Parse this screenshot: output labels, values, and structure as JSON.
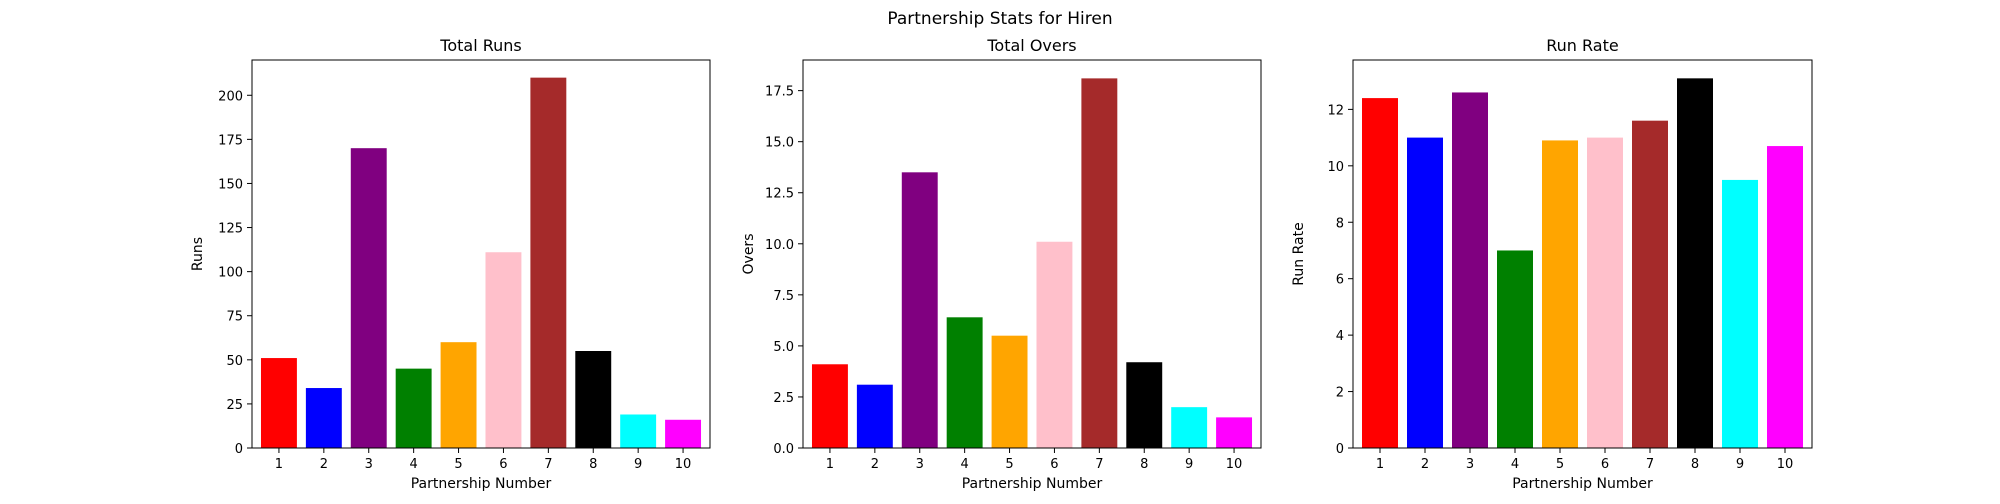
{
  "figure": {
    "suptitle": "Partnership Stats for Hiren"
  },
  "colors": [
    "#ff0000",
    "#0000ff",
    "#800080",
    "#008000",
    "#ffa500",
    "#ffc0cb",
    "#a52a2a",
    "#000000",
    "#00ffff",
    "#ff00ff"
  ],
  "chart_data": [
    {
      "type": "bar",
      "title": "Total Runs",
      "xlabel": "Partnership Number",
      "ylabel": "Runs",
      "categories": [
        "1",
        "2",
        "3",
        "4",
        "5",
        "6",
        "7",
        "8",
        "9",
        "10"
      ],
      "values": [
        51,
        34,
        170,
        45,
        60,
        111,
        210,
        55,
        19,
        16
      ],
      "ylim": [
        0,
        220
      ],
      "yticks": [
        0,
        25,
        50,
        75,
        100,
        125,
        150,
        175,
        200
      ],
      "ytick_labels": [
        "0",
        "25",
        "50",
        "75",
        "100",
        "125",
        "150",
        "175",
        "200"
      ],
      "grid": false
    },
    {
      "type": "bar",
      "title": "Total Overs",
      "xlabel": "Partnership Number",
      "ylabel": "Overs",
      "categories": [
        "1",
        "2",
        "3",
        "4",
        "5",
        "6",
        "7",
        "8",
        "9",
        "10"
      ],
      "values": [
        4.1,
        3.1,
        13.5,
        6.4,
        5.5,
        10.1,
        18.1,
        4.2,
        2.0,
        1.5
      ],
      "ylim": [
        0,
        19
      ],
      "yticks": [
        0,
        2.5,
        5,
        7.5,
        10,
        12.5,
        15,
        17.5
      ],
      "ytick_labels": [
        "0.0",
        "2.5",
        "5.0",
        "7.5",
        "10.0",
        "12.5",
        "15.0",
        "17.5"
      ],
      "grid": false
    },
    {
      "type": "bar",
      "title": "Run Rate",
      "xlabel": "Partnership Number",
      "ylabel": "Run Rate",
      "categories": [
        "1",
        "2",
        "3",
        "4",
        "5",
        "6",
        "7",
        "8",
        "9",
        "10"
      ],
      "values": [
        12.4,
        11.0,
        12.6,
        7.0,
        10.9,
        11.0,
        11.6,
        13.1,
        9.5,
        10.7
      ],
      "ylim": [
        0,
        13.75
      ],
      "yticks": [
        0,
        2,
        4,
        6,
        8,
        10,
        12
      ],
      "ytick_labels": [
        "0",
        "2",
        "4",
        "6",
        "8",
        "10",
        "12"
      ],
      "grid": false
    }
  ]
}
